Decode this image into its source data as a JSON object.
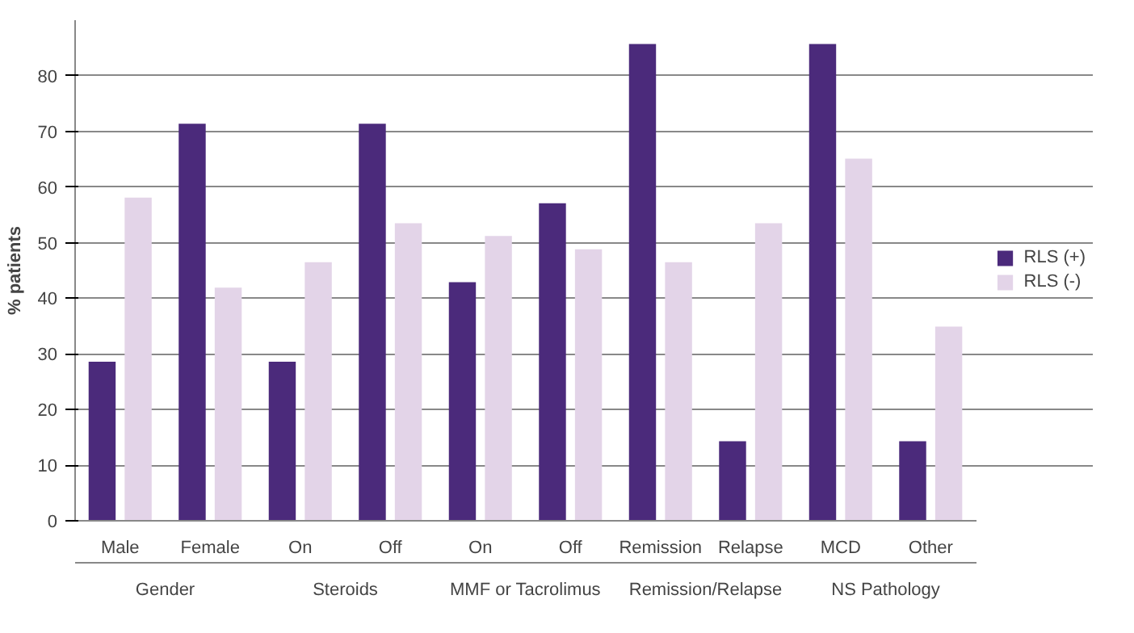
{
  "chart_data": {
    "type": "bar",
    "ylabel": "% patients",
    "categories": [
      "Male",
      "Female",
      "On",
      "Off",
      "On",
      "Off",
      "Remission",
      "Relapse",
      "MCD",
      "Other"
    ],
    "annotations": [
      "Gender",
      "Steroids",
      "MMF or Tacrolimus",
      "Remission/Relapse",
      "NS Pathology"
    ],
    "series": [
      {
        "name": "RLS (+)",
        "color": "#4b2a7b",
        "values": [
          28.6,
          71.4,
          28.6,
          71.4,
          42.9,
          57.1,
          85.7,
          14.3,
          85.7,
          14.3
        ]
      },
      {
        "name": "RLS (-)",
        "color": "#e3d4e8",
        "values": [
          58.1,
          41.9,
          46.5,
          53.5,
          51.2,
          48.8,
          46.5,
          53.5,
          65.1,
          34.9
        ]
      }
    ],
    "ylim": [
      0,
      90
    ],
    "yticks": [
      0,
      10,
      20,
      30,
      40,
      50,
      60,
      70,
      80
    ],
    "grid": "y",
    "legend": "right"
  }
}
